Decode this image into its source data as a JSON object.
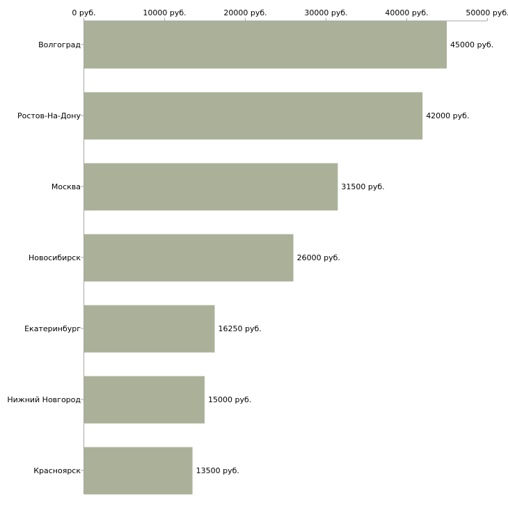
{
  "chart_data": {
    "type": "bar",
    "orientation": "horizontal",
    "title": "",
    "xlabel": "",
    "ylabel": "",
    "unit": "руб.",
    "categories": [
      "Волгоград",
      "Ростов-На-Дону",
      "Москва",
      "Новосибирск",
      "Екатеринбург",
      "Нижний Новгород",
      "Красноярск"
    ],
    "values": [
      45000,
      42000,
      31500,
      26000,
      16250,
      15000,
      13500
    ],
    "value_labels": [
      "45000 руб.",
      "42000 руб.",
      "31500 руб.",
      "26000 руб.",
      "16250 руб.",
      "15000 руб.",
      "13500 руб."
    ],
    "xlim": [
      0,
      50000
    ],
    "ticks": [
      0,
      10000,
      20000,
      30000,
      40000,
      50000
    ],
    "tick_labels": [
      "0 руб.",
      "10000 руб.",
      "20000 руб.",
      "30000 руб.",
      "40000 руб.",
      "50000 руб."
    ],
    "axis_position": "top",
    "grid": false,
    "colors": {
      "bar": "#abb198",
      "axis": "#a6a6a6",
      "text": "#000000"
    }
  }
}
